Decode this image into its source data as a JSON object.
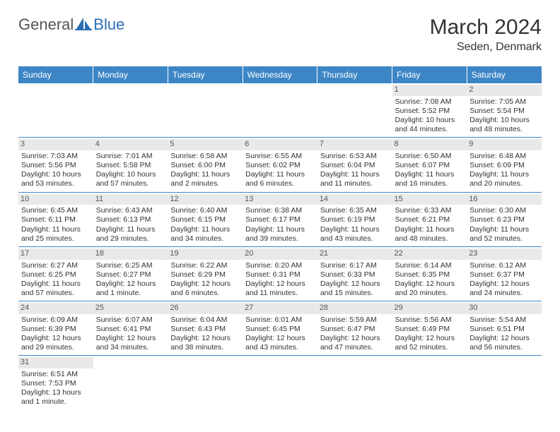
{
  "brand": {
    "general": "General",
    "blue": "Blue"
  },
  "title": "March 2024",
  "location": "Seden, Denmark",
  "colors": {
    "header_bg": "#3d86c6",
    "header_fg": "#ffffff",
    "daynum_bg": "#e9e9e9",
    "daynum_fg": "#555555",
    "border": "#3d86c6",
    "text": "#333333",
    "logo_gray": "#555555",
    "logo_blue": "#2c6eb5"
  },
  "weekdays": [
    "Sunday",
    "Monday",
    "Tuesday",
    "Wednesday",
    "Thursday",
    "Friday",
    "Saturday"
  ],
  "weeks": [
    [
      null,
      null,
      null,
      null,
      null,
      {
        "n": "1",
        "sr": "Sunrise: 7:08 AM",
        "ss": "Sunset: 5:52 PM",
        "dl1": "Daylight: 10 hours",
        "dl2": "and 44 minutes."
      },
      {
        "n": "2",
        "sr": "Sunrise: 7:05 AM",
        "ss": "Sunset: 5:54 PM",
        "dl1": "Daylight: 10 hours",
        "dl2": "and 48 minutes."
      }
    ],
    [
      {
        "n": "3",
        "sr": "Sunrise: 7:03 AM",
        "ss": "Sunset: 5:56 PM",
        "dl1": "Daylight: 10 hours",
        "dl2": "and 53 minutes."
      },
      {
        "n": "4",
        "sr": "Sunrise: 7:01 AM",
        "ss": "Sunset: 5:58 PM",
        "dl1": "Daylight: 10 hours",
        "dl2": "and 57 minutes."
      },
      {
        "n": "5",
        "sr": "Sunrise: 6:58 AM",
        "ss": "Sunset: 6:00 PM",
        "dl1": "Daylight: 11 hours",
        "dl2": "and 2 minutes."
      },
      {
        "n": "6",
        "sr": "Sunrise: 6:55 AM",
        "ss": "Sunset: 6:02 PM",
        "dl1": "Daylight: 11 hours",
        "dl2": "and 6 minutes."
      },
      {
        "n": "7",
        "sr": "Sunrise: 6:53 AM",
        "ss": "Sunset: 6:04 PM",
        "dl1": "Daylight: 11 hours",
        "dl2": "and 11 minutes."
      },
      {
        "n": "8",
        "sr": "Sunrise: 6:50 AM",
        "ss": "Sunset: 6:07 PM",
        "dl1": "Daylight: 11 hours",
        "dl2": "and 16 minutes."
      },
      {
        "n": "9",
        "sr": "Sunrise: 6:48 AM",
        "ss": "Sunset: 6:09 PM",
        "dl1": "Daylight: 11 hours",
        "dl2": "and 20 minutes."
      }
    ],
    [
      {
        "n": "10",
        "sr": "Sunrise: 6:45 AM",
        "ss": "Sunset: 6:11 PM",
        "dl1": "Daylight: 11 hours",
        "dl2": "and 25 minutes."
      },
      {
        "n": "11",
        "sr": "Sunrise: 6:43 AM",
        "ss": "Sunset: 6:13 PM",
        "dl1": "Daylight: 11 hours",
        "dl2": "and 29 minutes."
      },
      {
        "n": "12",
        "sr": "Sunrise: 6:40 AM",
        "ss": "Sunset: 6:15 PM",
        "dl1": "Daylight: 11 hours",
        "dl2": "and 34 minutes."
      },
      {
        "n": "13",
        "sr": "Sunrise: 6:38 AM",
        "ss": "Sunset: 6:17 PM",
        "dl1": "Daylight: 11 hours",
        "dl2": "and 39 minutes."
      },
      {
        "n": "14",
        "sr": "Sunrise: 6:35 AM",
        "ss": "Sunset: 6:19 PM",
        "dl1": "Daylight: 11 hours",
        "dl2": "and 43 minutes."
      },
      {
        "n": "15",
        "sr": "Sunrise: 6:33 AM",
        "ss": "Sunset: 6:21 PM",
        "dl1": "Daylight: 11 hours",
        "dl2": "and 48 minutes."
      },
      {
        "n": "16",
        "sr": "Sunrise: 6:30 AM",
        "ss": "Sunset: 6:23 PM",
        "dl1": "Daylight: 11 hours",
        "dl2": "and 52 minutes."
      }
    ],
    [
      {
        "n": "17",
        "sr": "Sunrise: 6:27 AM",
        "ss": "Sunset: 6:25 PM",
        "dl1": "Daylight: 11 hours",
        "dl2": "and 57 minutes."
      },
      {
        "n": "18",
        "sr": "Sunrise: 6:25 AM",
        "ss": "Sunset: 6:27 PM",
        "dl1": "Daylight: 12 hours",
        "dl2": "and 1 minute."
      },
      {
        "n": "19",
        "sr": "Sunrise: 6:22 AM",
        "ss": "Sunset: 6:29 PM",
        "dl1": "Daylight: 12 hours",
        "dl2": "and 6 minutes."
      },
      {
        "n": "20",
        "sr": "Sunrise: 6:20 AM",
        "ss": "Sunset: 6:31 PM",
        "dl1": "Daylight: 12 hours",
        "dl2": "and 11 minutes."
      },
      {
        "n": "21",
        "sr": "Sunrise: 6:17 AM",
        "ss": "Sunset: 6:33 PM",
        "dl1": "Daylight: 12 hours",
        "dl2": "and 15 minutes."
      },
      {
        "n": "22",
        "sr": "Sunrise: 6:14 AM",
        "ss": "Sunset: 6:35 PM",
        "dl1": "Daylight: 12 hours",
        "dl2": "and 20 minutes."
      },
      {
        "n": "23",
        "sr": "Sunrise: 6:12 AM",
        "ss": "Sunset: 6:37 PM",
        "dl1": "Daylight: 12 hours",
        "dl2": "and 24 minutes."
      }
    ],
    [
      {
        "n": "24",
        "sr": "Sunrise: 6:09 AM",
        "ss": "Sunset: 6:39 PM",
        "dl1": "Daylight: 12 hours",
        "dl2": "and 29 minutes."
      },
      {
        "n": "25",
        "sr": "Sunrise: 6:07 AM",
        "ss": "Sunset: 6:41 PM",
        "dl1": "Daylight: 12 hours",
        "dl2": "and 34 minutes."
      },
      {
        "n": "26",
        "sr": "Sunrise: 6:04 AM",
        "ss": "Sunset: 6:43 PM",
        "dl1": "Daylight: 12 hours",
        "dl2": "and 38 minutes."
      },
      {
        "n": "27",
        "sr": "Sunrise: 6:01 AM",
        "ss": "Sunset: 6:45 PM",
        "dl1": "Daylight: 12 hours",
        "dl2": "and 43 minutes."
      },
      {
        "n": "28",
        "sr": "Sunrise: 5:59 AM",
        "ss": "Sunset: 6:47 PM",
        "dl1": "Daylight: 12 hours",
        "dl2": "and 47 minutes."
      },
      {
        "n": "29",
        "sr": "Sunrise: 5:56 AM",
        "ss": "Sunset: 6:49 PM",
        "dl1": "Daylight: 12 hours",
        "dl2": "and 52 minutes."
      },
      {
        "n": "30",
        "sr": "Sunrise: 5:54 AM",
        "ss": "Sunset: 6:51 PM",
        "dl1": "Daylight: 12 hours",
        "dl2": "and 56 minutes."
      }
    ],
    [
      {
        "n": "31",
        "sr": "Sunrise: 6:51 AM",
        "ss": "Sunset: 7:53 PM",
        "dl1": "Daylight: 13 hours",
        "dl2": "and 1 minute."
      },
      null,
      null,
      null,
      null,
      null,
      null
    ]
  ]
}
